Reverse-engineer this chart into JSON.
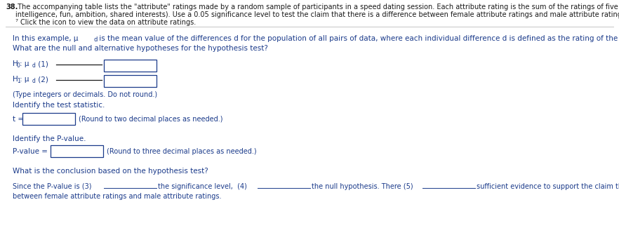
{
  "bg_color": "#ffffff",
  "blue": "#1a3a8a",
  "black": "#1a1a1a",
  "gray_line": "#bbbbbb",
  "header_num": "38.",
  "header_text1": " The accompanying table lists the \"attribute\" ratings made by a random sample of participants in a speed dating session. Each attribute rating is the sum of the ratings of five attributes (sincerity,",
  "header_text2": "intelligence, fun, ambition, shared interests). Use a 0.05 significance level to test the claim that there is a difference between female attribute ratings and male attribute ratings.",
  "header_text3": "⁷ Click the icon to view the data on attribute ratings.",
  "body1a": "In this example, μ",
  "body1b": "d",
  "body1c": " is the mean value of the differences d for the population of all pairs of data, where each individual difference d is defined as the rating of the male minus the rating of the female.",
  "body2": "What are the null and alternative hypotheses for the hypothesis test?",
  "h0_pre": "H",
  "h0_sub0": "0",
  "h0_colon": ": μ",
  "h0_subd": "d",
  "h0_post": " (1)",
  "h1_pre": "H",
  "h1_sub1": "1",
  "h1_colon": ": μ",
  "h1_subd": "d",
  "h1_post": " (2)",
  "type_note": "(Type integers or decimals. Do not round.)",
  "identify_stat": "Identify the test statistic.",
  "t_label": "t =",
  "t_note": "(Round to two decimal places as needed.)",
  "identify_pval": "Identify the P-value.",
  "pval_label": "P-value =",
  "pval_note": "(Round to three decimal places as needed.)",
  "conclusion_header": "What is the conclusion based on the hypothesis test?",
  "conclusion_text1": "Since the P-value is (3)",
  "conclusion_blank1": "               ",
  "conclusion_text2": " the significance level,  (4)",
  "conclusion_blank2": "               ",
  "conclusion_text3": " the null hypothesis. There (5)",
  "conclusion_blank3": "               ",
  "conclusion_text4": " sufficient evidence to support the claim that there is a difference",
  "conclusion_text5": "between female attribute ratings and male attribute ratings.",
  "fs_header": 7.0,
  "fs_body": 7.5,
  "fs_small": 7.0
}
